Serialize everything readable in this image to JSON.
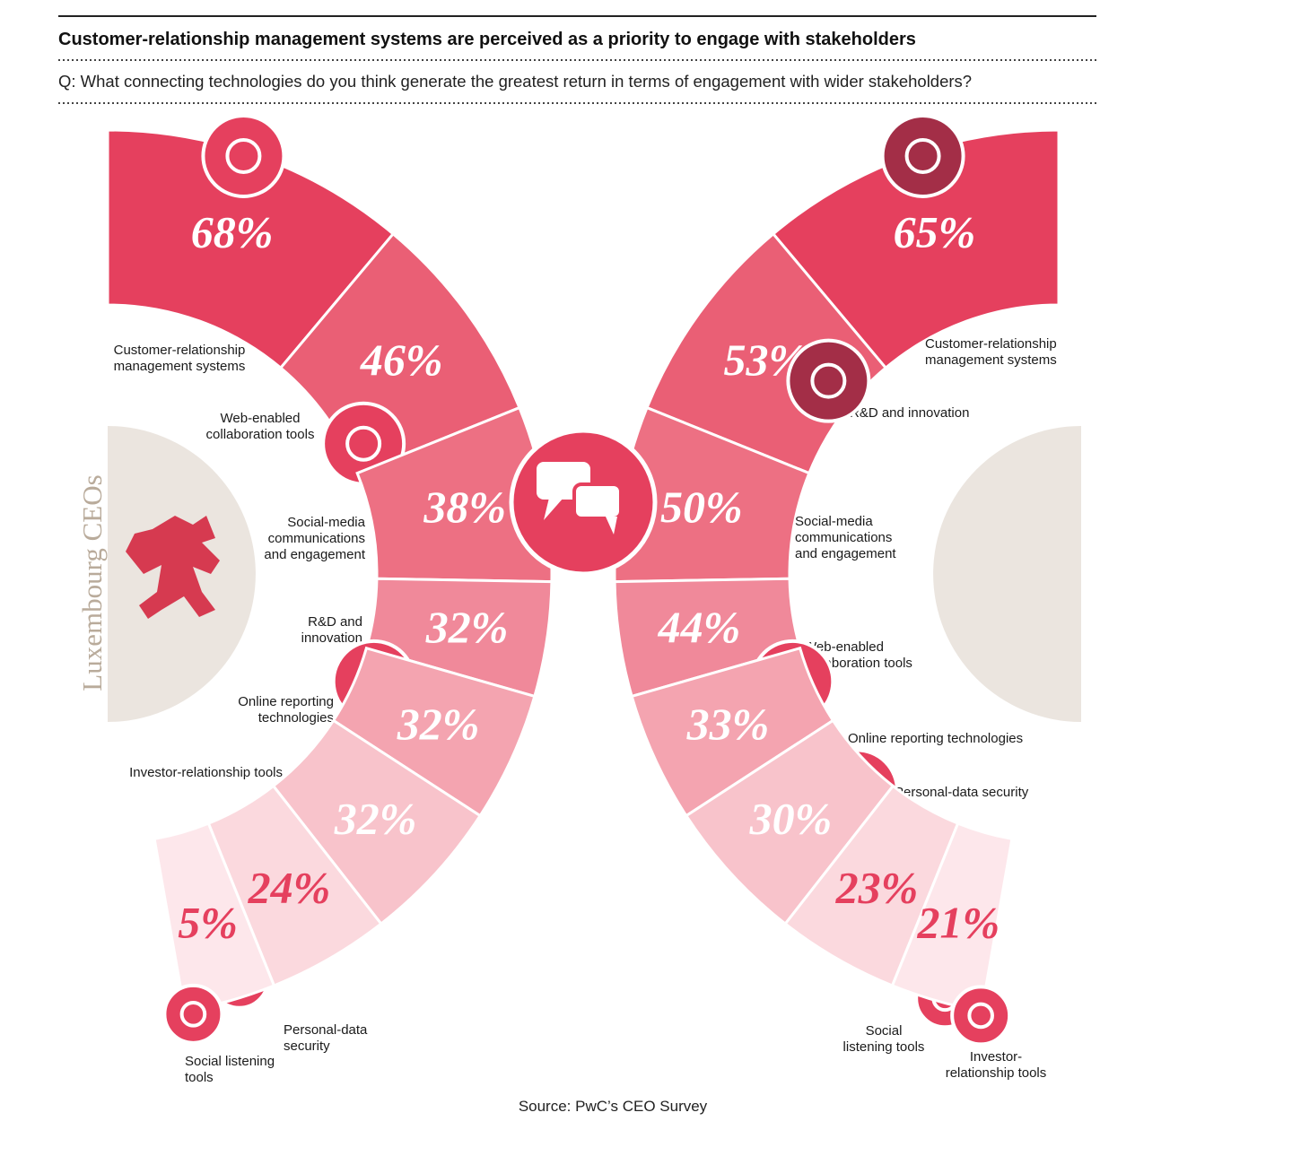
{
  "header": {
    "title": "Customer-relationship management systems are perceived as a priority to engage with stakeholders",
    "question": "Q: What connecting technologies do you think generate the greatest return in terms of engagement with wider stakeholders?"
  },
  "panels": [
    {
      "label": "Luxembourg CEOs",
      "items": [
        {
          "value": "68%",
          "label": [
            "Customer-relationship",
            "management systems"
          ]
        },
        {
          "value": "46%",
          "label": [
            "Web-enabled",
            "collaboration tools"
          ]
        },
        {
          "value": "38%",
          "label": [
            "Social-media",
            "communications",
            "and engagement"
          ]
        },
        {
          "value": "32%",
          "label": [
            "R&D and",
            "innovation"
          ]
        },
        {
          "value": "32%",
          "label": [
            "Online reporting",
            "technologies"
          ]
        },
        {
          "value": "32%",
          "label": [
            "Investor-relationship tools"
          ]
        },
        {
          "value": "24%",
          "label": [
            "Personal-data",
            "security"
          ]
        },
        {
          "value": "5%",
          "label": [
            "Social listening",
            "tools"
          ]
        }
      ]
    },
    {
      "items": [
        {
          "value": "65%",
          "label": [
            "Customer-relationship",
            "management systems"
          ]
        },
        {
          "value": "53%",
          "label": [
            "R&D and innovation"
          ]
        },
        {
          "value": "50%",
          "label": [
            "Social-media",
            "communications",
            "and engagement"
          ]
        },
        {
          "value": "44%",
          "label": [
            "Web-enabled",
            "collaboration tools"
          ]
        },
        {
          "value": "33%",
          "label": [
            "Online reporting technologies"
          ]
        },
        {
          "value": "30%",
          "label": [
            "Personal-data security"
          ]
        },
        {
          "value": "23%",
          "label": [
            "Social",
            "listening tools"
          ]
        },
        {
          "value": "21%",
          "label": [
            "Investor-",
            "relationship tools"
          ]
        }
      ]
    }
  ],
  "source": "Source: PwC’s CEO Survey"
}
